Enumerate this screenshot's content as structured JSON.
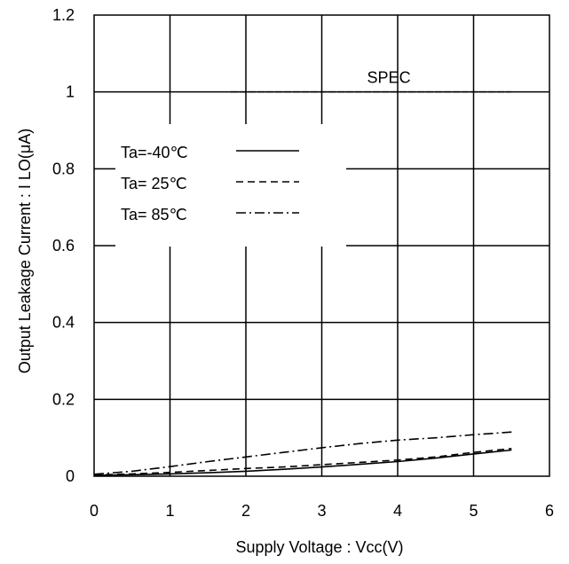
{
  "chart_data": {
    "type": "line",
    "title": "",
    "xlabel": "Supply Voltage : Vcc(V)",
    "ylabel": "Output Leakage Current : I LO(μA)",
    "xlim": [
      0,
      6
    ],
    "ylim": [
      0,
      1.2
    ],
    "xticks": [
      "0",
      "1",
      "2",
      "3",
      "4",
      "5",
      "6"
    ],
    "yticks": [
      "0",
      "0.2",
      "0.4",
      "0.6",
      "0.8",
      "1",
      "1.2"
    ],
    "grid": true,
    "legend_position": "upper-left",
    "series": [
      {
        "name": "Ta=-40℃",
        "dash": "solid",
        "x": [
          0,
          0.5,
          1,
          1.5,
          2,
          2.5,
          3,
          3.5,
          4,
          4.5,
          5,
          5.5
        ],
        "y": [
          0.002,
          0.004,
          0.006,
          0.009,
          0.013,
          0.018,
          0.024,
          0.031,
          0.038,
          0.047,
          0.058,
          0.068
        ]
      },
      {
        "name": "Ta= 25℃",
        "dash": "dashed",
        "x": [
          0,
          0.5,
          1,
          1.5,
          2,
          2.5,
          3,
          3.5,
          4,
          4.5,
          5,
          5.5
        ],
        "y": [
          0.003,
          0.006,
          0.01,
          0.015,
          0.02,
          0.024,
          0.03,
          0.036,
          0.042,
          0.05,
          0.062,
          0.072
        ]
      },
      {
        "name": "Ta= 85℃",
        "dash": "dashdot",
        "x": [
          0,
          0.5,
          1,
          1.5,
          2,
          2.5,
          3,
          3.5,
          4,
          4.5,
          5,
          5.5
        ],
        "y": [
          0.005,
          0.013,
          0.025,
          0.038,
          0.05,
          0.062,
          0.074,
          0.085,
          0.094,
          0.1,
          0.108,
          0.115
        ]
      }
    ],
    "annotations": [
      {
        "text": "SPEC",
        "x_range": [
          1.8,
          5.5
        ],
        "y": 1.0
      }
    ]
  }
}
